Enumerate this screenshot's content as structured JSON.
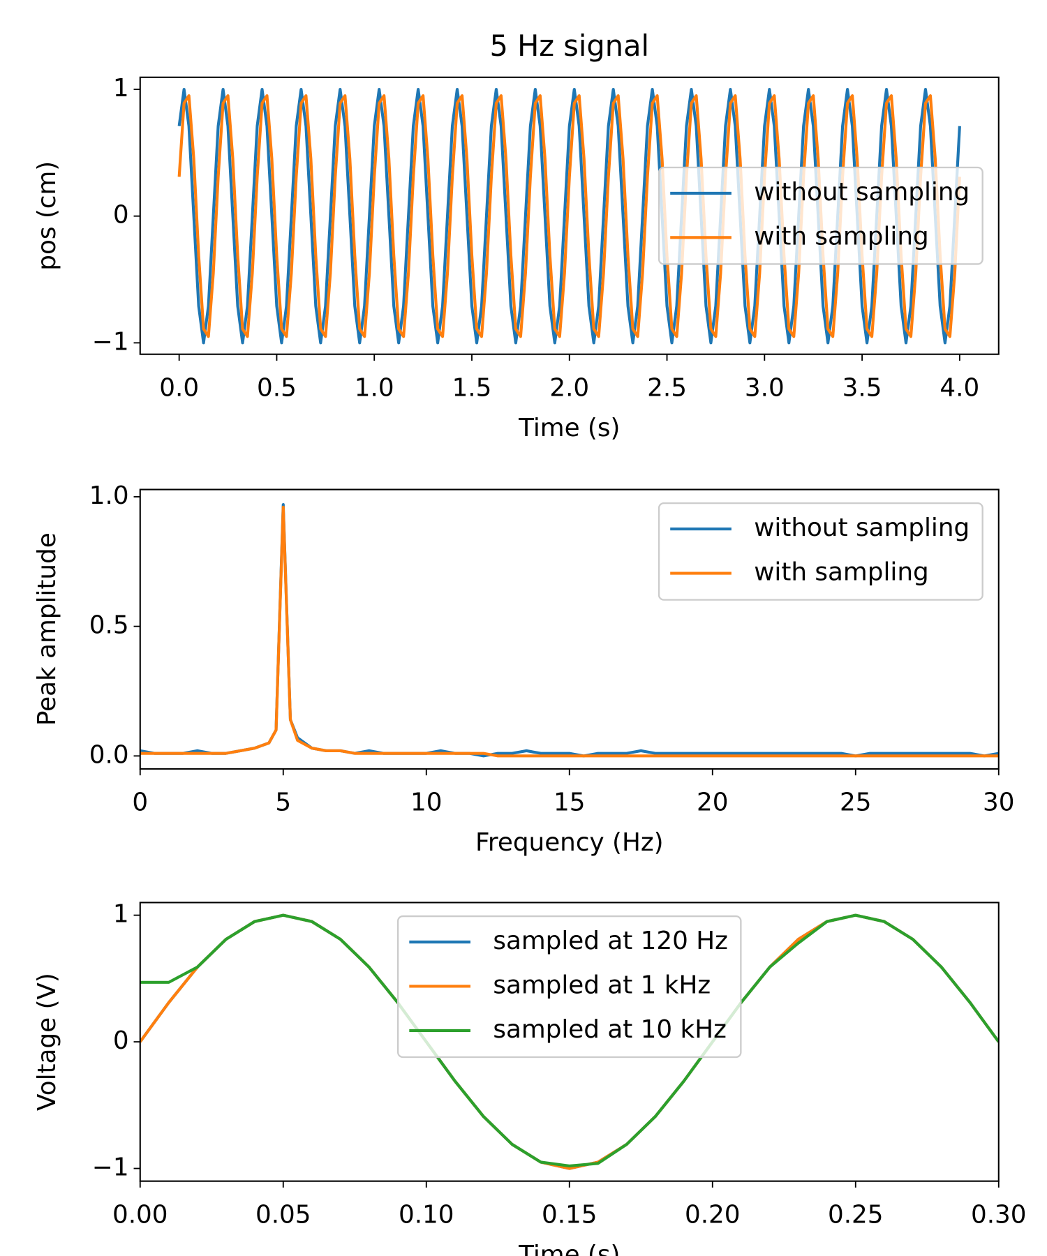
{
  "chart_data": [
    {
      "type": "line",
      "title": "5 Hz signal",
      "xlabel": "Time (s)",
      "ylabel": "pos (cm)",
      "x": [
        0,
        0.025,
        0.05,
        0.075,
        0.1,
        0.125,
        0.15,
        0.175,
        0.2,
        0.225,
        0.25,
        0.275,
        0.3,
        0.325,
        0.35,
        0.375,
        0.4,
        0.425,
        0.45,
        0.475,
        0.5,
        0.525,
        0.55,
        0.575,
        0.6,
        0.625,
        0.65,
        0.675,
        0.7,
        0.725,
        0.75,
        0.775,
        0.8,
        0.825,
        0.85,
        0.875,
        0.9,
        0.925,
        0.95,
        0.975,
        1.0,
        1.025,
        1.05,
        1.075,
        1.1,
        1.125,
        1.15,
        1.175,
        1.2,
        1.225,
        1.25,
        1.275,
        1.3,
        1.325,
        1.35,
        1.375,
        1.4,
        1.425,
        1.45,
        1.475,
        1.5,
        1.525,
        1.55,
        1.575,
        1.6,
        1.625,
        1.65,
        1.675,
        1.7,
        1.725,
        1.75,
        1.775,
        1.8,
        1.825,
        1.85,
        1.875,
        1.9,
        1.925,
        1.95,
        1.975,
        2.0,
        2.025,
        2.05,
        2.075,
        2.1,
        2.125,
        2.15,
        2.175,
        2.2,
        2.225,
        2.25,
        2.275,
        2.3,
        2.325,
        2.35,
        2.375,
        2.4,
        2.425,
        2.45,
        2.475,
        2.5,
        2.525,
        2.55,
        2.575,
        2.6,
        2.625,
        2.65,
        2.675,
        2.7,
        2.725,
        2.75,
        2.775,
        2.8,
        2.825,
        2.85,
        2.875,
        2.9,
        2.925,
        2.95,
        2.975,
        3.0,
        3.025,
        3.05,
        3.075,
        3.1,
        3.125,
        3.15,
        3.175,
        3.2,
        3.225,
        3.25,
        3.275,
        3.3,
        3.325,
        3.35,
        3.375,
        3.4,
        3.425,
        3.45,
        3.475,
        3.5,
        3.525,
        3.55,
        3.575,
        3.6,
        3.625,
        3.65,
        3.675,
        3.7,
        3.725,
        3.75,
        3.775,
        3.8,
        3.825,
        3.85,
        3.875,
        3.9,
        3.925,
        3.95,
        3.975,
        4.0
      ],
      "series": [
        {
          "name": "without sampling",
          "color": "#1f77b4",
          "values": [
            0.71,
            1,
            0.71,
            0,
            -0.71,
            -1,
            -0.71,
            0,
            0.71,
            1,
            0.71,
            0,
            -0.71,
            -1,
            -0.71,
            0,
            0.71,
            1,
            0.71,
            0,
            -0.71,
            -1,
            -0.71,
            0,
            0.71,
            1,
            0.71,
            0,
            -0.71,
            -1,
            -0.71,
            0,
            0.71,
            1,
            0.71,
            0,
            -0.71,
            -1,
            -0.71,
            0,
            0.71,
            1,
            0.71,
            0,
            -0.71,
            -1,
            -0.71,
            0,
            0.71,
            1,
            0.71,
            0,
            -0.71,
            -1,
            -0.71,
            0,
            0.71,
            1,
            0.71,
            0,
            -0.71,
            -1,
            -0.71,
            0,
            0.71,
            1,
            0.71,
            0,
            -0.71,
            -1,
            -0.71,
            0,
            0.71,
            1,
            0.71,
            0,
            -0.71,
            -1,
            -0.71,
            0,
            0.71,
            1,
            0.71,
            0,
            -0.71,
            -1,
            -0.71,
            0,
            0.71,
            1,
            0.71,
            0,
            -0.71,
            -1,
            -0.71,
            0,
            0.71,
            1,
            0.71,
            0,
            -0.71,
            -1,
            -0.71,
            0,
            0.71,
            1,
            0.71,
            0,
            -0.71,
            -1,
            -0.71,
            0,
            0.71,
            1,
            0.71,
            0,
            -0.71,
            -1,
            -0.71,
            0,
            0.71,
            1,
            0.71,
            0,
            -0.71,
            -1,
            -0.71,
            0,
            0.71,
            1,
            0.71,
            0,
            -0.71,
            -1,
            -0.71,
            0,
            0.71,
            1,
            0.71,
            0,
            -0.71,
            -1,
            -0.71,
            0,
            0.71,
            1,
            0.71,
            0,
            -0.71,
            -1,
            -0.71,
            0,
            0.71,
            1,
            0.71,
            0,
            -0.71,
            -1,
            -0.71,
            0,
            0.71
          ]
        },
        {
          "name": "with sampling",
          "color": "#ff7f0e",
          "values": [
            0.31,
            0.89,
            0.95,
            0.45,
            -0.31,
            -0.89,
            -0.95,
            -0.45,
            0.31,
            0.89,
            0.95,
            0.45,
            -0.31,
            -0.89,
            -0.95,
            -0.45,
            0.31,
            0.89,
            0.95,
            0.45,
            -0.31,
            -0.89,
            -0.95,
            -0.45,
            0.31,
            0.89,
            0.95,
            0.45,
            -0.31,
            -0.89,
            -0.95,
            -0.45,
            0.31,
            0.89,
            0.95,
            0.45,
            -0.31,
            -0.89,
            -0.95,
            -0.45,
            0.31,
            0.89,
            0.95,
            0.45,
            -0.31,
            -0.89,
            -0.95,
            -0.45,
            0.31,
            0.89,
            0.95,
            0.45,
            -0.31,
            -0.89,
            -0.95,
            -0.45,
            0.31,
            0.89,
            0.95,
            0.45,
            -0.31,
            -0.89,
            -0.95,
            -0.45,
            0.31,
            0.89,
            0.95,
            0.45,
            -0.31,
            -0.89,
            -0.95,
            -0.45,
            0.31,
            0.89,
            0.95,
            0.45,
            -0.31,
            -0.89,
            -0.95,
            -0.45,
            0.31,
            0.89,
            0.95,
            0.45,
            -0.31,
            -0.89,
            -0.95,
            -0.45,
            0.31,
            0.89,
            0.95,
            0.45,
            -0.31,
            -0.89,
            -0.95,
            -0.45,
            0.31,
            0.89,
            0.95,
            0.45,
            -0.31,
            -0.89,
            -0.95,
            -0.45,
            0.31,
            0.89,
            0.95,
            0.45,
            -0.31,
            -0.89,
            -0.95,
            -0.45,
            0.31,
            0.89,
            0.95,
            0.45,
            -0.31,
            -0.89,
            -0.95,
            -0.45,
            0.31,
            0.89,
            0.95,
            0.45,
            -0.31,
            -0.89,
            -0.95,
            -0.45,
            0.31,
            0.89,
            0.95,
            0.45,
            -0.31,
            -0.89,
            -0.95,
            -0.45,
            0.31,
            0.89,
            0.95,
            0.45,
            -0.31,
            -0.89,
            -0.95,
            -0.45,
            0.31,
            0.89,
            0.95,
            0.45,
            -0.31,
            -0.89,
            -0.95,
            -0.45,
            0.31,
            0.89,
            0.95,
            0.45,
            -0.31,
            -0.89,
            -0.95,
            -0.45,
            0.31
          ]
        }
      ],
      "xlim": [
        -0.2,
        4.2
      ],
      "ylim": [
        -1.09,
        1.095
      ],
      "xticks": [
        {
          "value": 0,
          "label": "0.0"
        },
        0.5,
        {
          "value": 1,
          "label": "1.0"
        },
        1.5,
        {
          "value": 2,
          "label": "2.0"
        },
        2.5,
        {
          "value": 3,
          "label": "3.0"
        },
        3.5,
        {
          "value": 4,
          "label": "4.0"
        }
      ],
      "yticks": [
        {
          "value": -1,
          "label": "−1"
        },
        0,
        1
      ],
      "legend": "center right"
    },
    {
      "type": "line",
      "xlabel": "Frequency (Hz)",
      "ylabel": "Peak amplitude",
      "x": [
        0,
        0.5,
        1,
        1.5,
        2,
        2.5,
        3,
        3.5,
        4,
        4.5,
        4.75,
        5,
        5.25,
        5.5,
        6,
        6.5,
        7,
        7.5,
        8,
        8.5,
        9,
        9.5,
        10,
        10.5,
        11,
        11.5,
        12,
        12.5,
        13,
        13.5,
        14,
        14.5,
        15,
        15.5,
        16,
        16.5,
        17,
        17.5,
        18,
        18.5,
        19,
        19.5,
        20,
        20.5,
        21,
        21.5,
        22,
        22.5,
        23,
        23.5,
        24,
        24.5,
        25,
        25.5,
        26,
        26.5,
        27,
        27.5,
        28,
        28.5,
        29,
        29.5,
        30
      ],
      "series": [
        {
          "name": "without sampling",
          "color": "#1f77b4",
          "values": [
            0.02,
            0.01,
            0.01,
            0.01,
            0.02,
            0.01,
            0.01,
            0.02,
            0.03,
            0.05,
            0.1,
            0.97,
            0.14,
            0.07,
            0.03,
            0.02,
            0.02,
            0.01,
            0.02,
            0.01,
            0.01,
            0.01,
            0.01,
            0.02,
            0.01,
            0.01,
            0,
            0.01,
            0.01,
            0.02,
            0.01,
            0.01,
            0.01,
            0,
            0.01,
            0.01,
            0.01,
            0.02,
            0.01,
            0.01,
            0.01,
            0.01,
            0.01,
            0.01,
            0.01,
            0.01,
            0.01,
            0.01,
            0.01,
            0.01,
            0.01,
            0.01,
            0,
            0.01,
            0.01,
            0.01,
            0.01,
            0.01,
            0.01,
            0.01,
            0.01,
            0,
            0.01
          ]
        },
        {
          "name": "with sampling",
          "color": "#ff7f0e",
          "values": [
            0.01,
            0.01,
            0.01,
            0.01,
            0.01,
            0.01,
            0.01,
            0.02,
            0.03,
            0.05,
            0.1,
            0.96,
            0.14,
            0.06,
            0.03,
            0.02,
            0.02,
            0.01,
            0.01,
            0.01,
            0.01,
            0.01,
            0.01,
            0.01,
            0.01,
            0.01,
            0.01,
            0,
            0,
            0,
            0,
            0,
            0,
            0,
            0,
            0,
            0,
            0,
            0,
            0,
            0,
            0,
            0,
            0,
            0,
            0,
            0,
            0,
            0,
            0,
            0,
            0,
            0,
            0,
            0,
            0,
            0,
            0,
            0,
            0,
            0,
            0,
            0
          ]
        }
      ],
      "xlim": [
        0,
        30
      ],
      "ylim": [
        -0.05,
        1.028
      ],
      "xticks": [
        0,
        5,
        10,
        15,
        20,
        25,
        30
      ],
      "yticks": [
        {
          "value": 0,
          "label": "0.0"
        },
        0.5,
        {
          "value": 1,
          "label": "1.0"
        }
      ],
      "legend": "upper right"
    },
    {
      "type": "line",
      "xlabel": "Time (s)",
      "ylabel": "Voltage (V)",
      "x": [
        0,
        0.01,
        0.02,
        0.03,
        0.04,
        0.05,
        0.06,
        0.07,
        0.08,
        0.09,
        0.1,
        0.11,
        0.12,
        0.13,
        0.14,
        0.15,
        0.16,
        0.17,
        0.18,
        0.19,
        0.2,
        0.21,
        0.22,
        0.23,
        0.24,
        0.25,
        0.26,
        0.27,
        0.28,
        0.29,
        0.3
      ],
      "series": [
        {
          "name": "sampled at 120 Hz",
          "color": "#1f77b4",
          "values": [
            0,
            0.31,
            0.59,
            0.81,
            0.95,
            1,
            0.95,
            0.81,
            0.59,
            0.31,
            0,
            -0.31,
            -0.59,
            -0.81,
            -0.95,
            -1,
            -0.95,
            -0.81,
            -0.59,
            -0.31,
            0,
            0.31,
            0.59,
            0.81,
            0.95,
            1,
            0.95,
            0.81,
            0.59,
            0.31,
            0
          ]
        },
        {
          "name": "sampled at 1 kHz",
          "color": "#ff7f0e",
          "values": [
            0,
            0.31,
            0.59,
            0.81,
            0.95,
            1,
            0.95,
            0.81,
            0.59,
            0.31,
            0,
            -0.31,
            -0.59,
            -0.81,
            -0.95,
            -1,
            -0.95,
            -0.81,
            -0.59,
            -0.31,
            0,
            0.31,
            0.59,
            0.81,
            0.95,
            1,
            0.95,
            0.81,
            0.59,
            0.31,
            0
          ]
        },
        {
          "name": "sampled at 10 kHz",
          "color": "#2ca02c",
          "values": [
            0.47,
            0.47,
            0.59,
            0.81,
            0.95,
            1,
            0.95,
            0.81,
            0.59,
            0.31,
            0,
            -0.31,
            -0.59,
            -0.81,
            -0.95,
            -0.98,
            -0.96,
            -0.81,
            -0.59,
            -0.31,
            0,
            0.31,
            0.59,
            0.78,
            0.95,
            1,
            0.95,
            0.81,
            0.59,
            0.31,
            0
          ]
        }
      ],
      "xlim": [
        0,
        0.3
      ],
      "ylim": [
        -1.1,
        1.1
      ],
      "xticks": [
        {
          "value": 0,
          "label": "0.00"
        },
        0.05,
        {
          "value": 0.1,
          "label": "0.10"
        },
        0.15,
        {
          "value": 0.2,
          "label": "0.20"
        },
        0.25,
        {
          "value": 0.3,
          "label": "0.30"
        }
      ],
      "yticks": [
        {
          "value": -1,
          "label": "−1"
        },
        0,
        1
      ],
      "legend": "upper center"
    }
  ]
}
